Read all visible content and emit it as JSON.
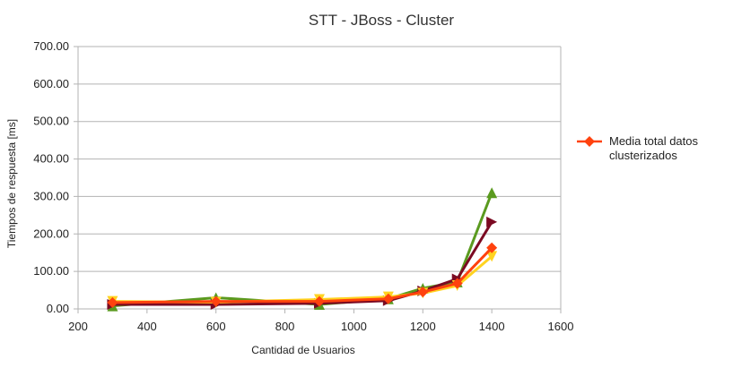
{
  "chart_data": {
    "type": "line",
    "title": "STT - JBoss - Cluster",
    "xlabel": "Cantidad de Usuarios",
    "ylabel": "Tiempos de respuesta [ms]",
    "xlim": [
      200,
      1600
    ],
    "ylim": [
      0,
      700
    ],
    "x_ticks": [
      200,
      400,
      600,
      800,
      1000,
      1200,
      1400,
      1600
    ],
    "y_ticks": [
      0,
      100,
      200,
      300,
      400,
      500,
      600,
      700
    ],
    "y_tick_labels": [
      "0.00",
      "100.00",
      "200.00",
      "300.00",
      "400.00",
      "500.00",
      "600.00",
      "700.00"
    ],
    "grid": "horizontal",
    "legend_position": "right",
    "x": [
      300,
      600,
      900,
      1100,
      1200,
      1300,
      1400
    ],
    "series": [
      {
        "color": "#5a9a1f",
        "marker": "triangle-up",
        "values": [
          8,
          30,
          12,
          27,
          55,
          72,
          310
        ]
      },
      {
        "color": "#7b0a22",
        "marker": "triangle-right",
        "values": [
          12,
          12,
          15,
          22,
          48,
          80,
          232
        ]
      },
      {
        "color": "#ffd320",
        "marker": "triangle-down",
        "values": [
          20,
          18,
          25,
          32,
          42,
          62,
          140
        ]
      },
      {
        "color": "#ff420e",
        "marker": "diamond",
        "name": "Media total datos clusterizados",
        "values": [
          17,
          20,
          20,
          27,
          45,
          68,
          163
        ]
      }
    ],
    "legend": {
      "line1": "Media total datos",
      "line2": "clusterizados",
      "color": "#ff420e"
    }
  }
}
